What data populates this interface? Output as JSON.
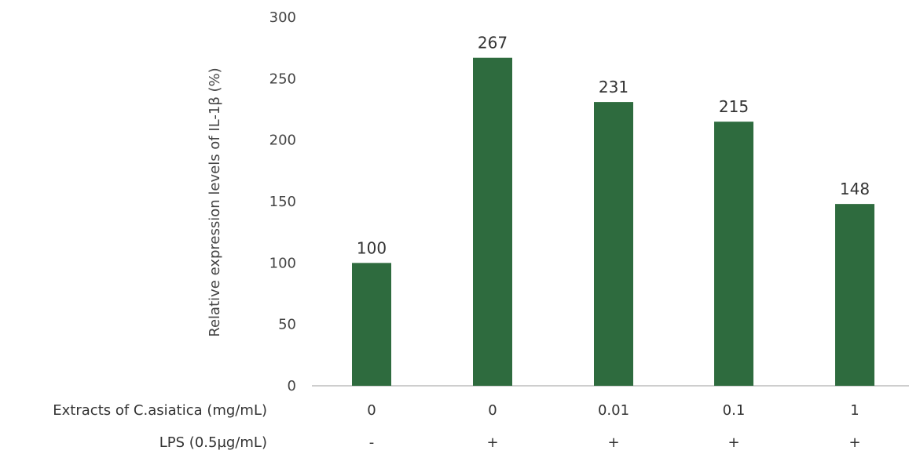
{
  "chart_data": {
    "type": "bar",
    "title": "",
    "ylabel": "Relative expression levels of IL-1β (%)",
    "ylim": [
      0,
      300
    ],
    "yticks": [
      0,
      50,
      100,
      150,
      200,
      250,
      300
    ],
    "grid": false,
    "legend": "none",
    "bar_color": "#2e6b3e",
    "categories": [
      {
        "extract": "0",
        "lps": "-"
      },
      {
        "extract": "0",
        "lps": "+"
      },
      {
        "extract": "0.01",
        "lps": "+"
      },
      {
        "extract": "0.1",
        "lps": "+"
      },
      {
        "extract": "1",
        "lps": "+"
      }
    ],
    "values": [
      100,
      267,
      231,
      215,
      148
    ],
    "data_labels": [
      "100",
      "267",
      "231",
      "215",
      "148"
    ],
    "row_labels": {
      "extract": "Extracts of C.asiatica (mg/mL)",
      "lps": "LPS (0.5µg/mL)"
    }
  }
}
